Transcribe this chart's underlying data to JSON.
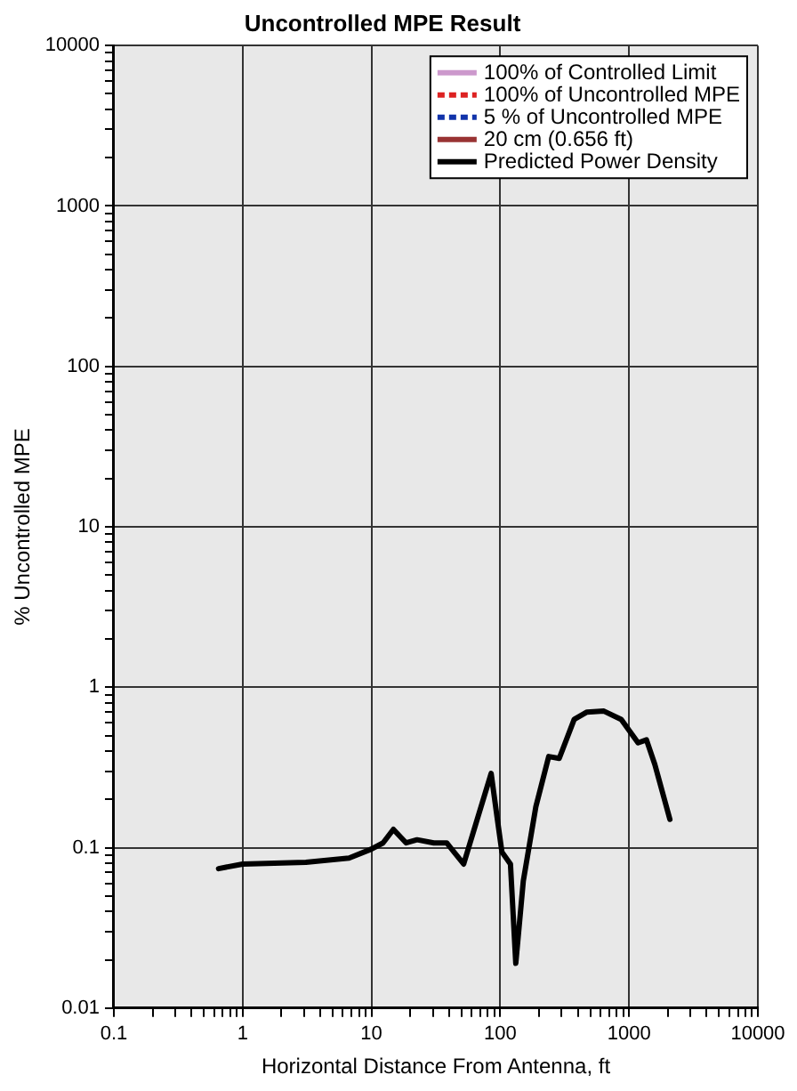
{
  "chart_data": {
    "type": "line",
    "title": "Uncontrolled MPE Result",
    "xlabel": "Horizontal Distance From Antenna, ft",
    "ylabel": "% Uncontrolled MPE",
    "log": "xy",
    "grid": true,
    "legend": "top right",
    "xlim": [
      0.1,
      10000
    ],
    "ylim": [
      0.01,
      10000
    ],
    "xticks": [
      0.1,
      {
        "value": 0.2,
        "label": null
      },
      {
        "value": 0.3,
        "label": null
      },
      {
        "value": 0.4,
        "label": null
      },
      {
        "value": 0.5,
        "label": null
      },
      {
        "value": 0.6,
        "label": null
      },
      {
        "value": 0.7,
        "label": null
      },
      {
        "value": 0.8,
        "label": null
      },
      {
        "value": 0.9,
        "label": null
      },
      1,
      {
        "value": 2,
        "label": null
      },
      {
        "value": 3,
        "label": null
      },
      {
        "value": 4,
        "label": null
      },
      {
        "value": 5,
        "label": null
      },
      {
        "value": 6,
        "label": null
      },
      {
        "value": 7,
        "label": null
      },
      {
        "value": 8,
        "label": null
      },
      {
        "value": 9,
        "label": null
      },
      10,
      {
        "value": 20,
        "label": null
      },
      {
        "value": 30,
        "label": null
      },
      {
        "value": 40,
        "label": null
      },
      {
        "value": 50,
        "label": null
      },
      {
        "value": 60,
        "label": null
      },
      {
        "value": 70,
        "label": null
      },
      {
        "value": 80,
        "label": null
      },
      {
        "value": 90,
        "label": null
      },
      100,
      {
        "value": 200,
        "label": null
      },
      {
        "value": 300,
        "label": null
      },
      {
        "value": 400,
        "label": null
      },
      {
        "value": 500,
        "label": null
      },
      {
        "value": 600,
        "label": null
      },
      {
        "value": 700,
        "label": null
      },
      {
        "value": 800,
        "label": null
      },
      {
        "value": 900,
        "label": null
      },
      1000,
      {
        "value": 2000,
        "label": null
      },
      {
        "value": 3000,
        "label": null
      },
      {
        "value": 4000,
        "label": null
      },
      {
        "value": 5000,
        "label": null
      },
      {
        "value": 6000,
        "label": null
      },
      {
        "value": 7000,
        "label": null
      },
      {
        "value": 8000,
        "label": null
      },
      {
        "value": 9000,
        "label": null
      },
      10000
    ],
    "yticks": [
      0.01,
      {
        "value": 0.02,
        "label": null
      },
      {
        "value": 0.03,
        "label": null
      },
      {
        "value": 0.04,
        "label": null
      },
      {
        "value": 0.05,
        "label": null
      },
      {
        "value": 0.06,
        "label": null
      },
      {
        "value": 0.07,
        "label": null
      },
      {
        "value": 0.08,
        "label": null
      },
      {
        "value": 0.09,
        "label": null
      },
      0.1,
      {
        "value": 0.2,
        "label": null
      },
      {
        "value": 0.3,
        "label": null
      },
      {
        "value": 0.4,
        "label": null
      },
      {
        "value": 0.5,
        "label": null
      },
      {
        "value": 0.6,
        "label": null
      },
      {
        "value": 0.7,
        "label": null
      },
      {
        "value": 0.8,
        "label": null
      },
      {
        "value": 0.9,
        "label": null
      },
      1,
      {
        "value": 2,
        "label": null
      },
      {
        "value": 3,
        "label": null
      },
      {
        "value": 4,
        "label": null
      },
      {
        "value": 5,
        "label": null
      },
      {
        "value": 6,
        "label": null
      },
      {
        "value": 7,
        "label": null
      },
      {
        "value": 8,
        "label": null
      },
      {
        "value": 9,
        "label": null
      },
      10,
      {
        "value": 20,
        "label": null
      },
      {
        "value": 30,
        "label": null
      },
      {
        "value": 40,
        "label": null
      },
      {
        "value": 50,
        "label": null
      },
      {
        "value": 60,
        "label": null
      },
      {
        "value": 70,
        "label": null
      },
      {
        "value": 80,
        "label": null
      },
      {
        "value": 90,
        "label": null
      },
      100,
      {
        "value": 200,
        "label": null
      },
      {
        "value": 300,
        "label": null
      },
      {
        "value": 400,
        "label": null
      },
      {
        "value": 500,
        "label": null
      },
      {
        "value": 600,
        "label": null
      },
      {
        "value": 700,
        "label": null
      },
      {
        "value": 800,
        "label": null
      },
      {
        "value": 900,
        "label": null
      },
      1000,
      {
        "value": 2000,
        "label": null
      },
      {
        "value": 3000,
        "label": null
      },
      {
        "value": 4000,
        "label": null
      },
      {
        "value": 5000,
        "label": null
      },
      {
        "value": 6000,
        "label": null
      },
      {
        "value": 7000,
        "label": null
      },
      {
        "value": 8000,
        "label": null
      },
      {
        "value": 9000,
        "label": null
      },
      10000
    ],
    "series": [
      {
        "name": "100% of Controlled Limit",
        "color": "#cc99cc",
        "line_style": "solid"
      },
      {
        "name": "100% of Uncontrolled MPE",
        "color": "#dd2222",
        "line_style": "dashed"
      },
      {
        "name": "5 % of Uncontrolled MPE",
        "color": "#1133aa",
        "line_style": "dashed"
      },
      {
        "name": "20 cm (0.656 ft)",
        "color": "#993333",
        "line_style": "solid"
      },
      {
        "name": "Predicted Power Density",
        "color": "#000000",
        "line_style": "solid",
        "x": [
          0.65,
          1,
          3.1,
          6.7,
          10,
          12.3,
          14.8,
          18.6,
          22.6,
          30.5,
          38.4,
          52,
          65,
          85,
          95,
          103,
          120,
          132,
          151,
          189,
          238,
          287,
          375,
          471,
          638,
          870,
          1175,
          1365,
          1585,
          2075
        ],
        "values": [
          0.074,
          0.079,
          0.081,
          0.086,
          0.098,
          0.107,
          0.13,
          0.107,
          0.112,
          0.107,
          0.107,
          0.079,
          0.143,
          0.29,
          0.15,
          0.094,
          0.079,
          0.019,
          0.062,
          0.18,
          0.37,
          0.36,
          0.63,
          0.7,
          0.71,
          0.63,
          0.45,
          0.47,
          0.33,
          0.15
        ]
      }
    ]
  }
}
